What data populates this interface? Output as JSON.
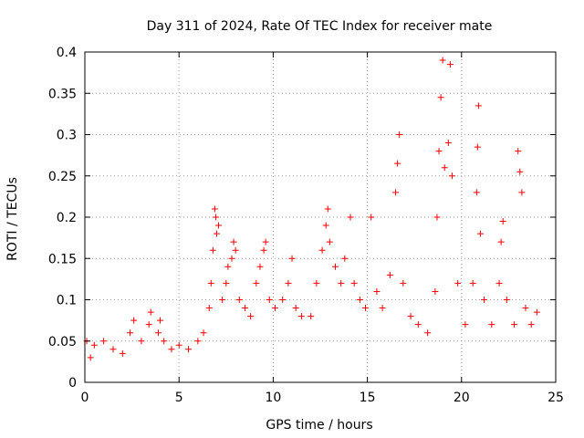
{
  "chart_data": {
    "type": "scatter",
    "title": "Day 311 of 2024, Rate Of TEC Index for receiver mate",
    "xlabel": "GPS time / hours",
    "ylabel": "ROTI / TECUs",
    "xlim": [
      0,
      25
    ],
    "ylim": [
      0,
      0.4
    ],
    "xticks": [
      0,
      5,
      10,
      15,
      20,
      25
    ],
    "yticks": [
      0,
      0.05,
      0.1,
      0.15,
      0.2,
      0.25,
      0.3,
      0.35,
      0.4
    ],
    "xtick_labels": [
      "0",
      "5",
      "10",
      "15",
      "20",
      "25"
    ],
    "ytick_labels": [
      "0",
      "0.05",
      "0.1",
      "0.15",
      "0.2",
      "0.25",
      "0.3",
      "0.35",
      "0.4"
    ],
    "grid": true,
    "marker": "+",
    "color": "#ff0000",
    "series": [
      {
        "name": "ROTI",
        "points": [
          [
            0.1,
            0.05
          ],
          [
            0.3,
            0.03
          ],
          [
            0.5,
            0.045
          ],
          [
            1.0,
            0.05
          ],
          [
            1.5,
            0.04
          ],
          [
            2.0,
            0.035
          ],
          [
            2.4,
            0.06
          ],
          [
            2.6,
            0.075
          ],
          [
            3.0,
            0.05
          ],
          [
            3.4,
            0.07
          ],
          [
            3.5,
            0.085
          ],
          [
            3.9,
            0.06
          ],
          [
            4.0,
            0.075
          ],
          [
            4.2,
            0.05
          ],
          [
            4.6,
            0.04
          ],
          [
            5.0,
            0.045
          ],
          [
            5.5,
            0.04
          ],
          [
            6.0,
            0.05
          ],
          [
            6.3,
            0.06
          ],
          [
            6.6,
            0.09
          ],
          [
            6.7,
            0.12
          ],
          [
            6.8,
            0.16
          ],
          [
            6.9,
            0.21
          ],
          [
            6.95,
            0.2
          ],
          [
            7.0,
            0.18
          ],
          [
            7.1,
            0.19
          ],
          [
            7.3,
            0.1
          ],
          [
            7.5,
            0.12
          ],
          [
            7.6,
            0.14
          ],
          [
            7.8,
            0.15
          ],
          [
            7.9,
            0.17
          ],
          [
            8.0,
            0.16
          ],
          [
            8.2,
            0.1
          ],
          [
            8.5,
            0.09
          ],
          [
            8.8,
            0.08
          ],
          [
            9.1,
            0.12
          ],
          [
            9.3,
            0.14
          ],
          [
            9.5,
            0.16
          ],
          [
            9.6,
            0.17
          ],
          [
            9.8,
            0.1
          ],
          [
            10.1,
            0.09
          ],
          [
            10.5,
            0.1
          ],
          [
            10.8,
            0.12
          ],
          [
            11.0,
            0.15
          ],
          [
            11.2,
            0.09
          ],
          [
            11.5,
            0.08
          ],
          [
            12.0,
            0.08
          ],
          [
            12.3,
            0.12
          ],
          [
            12.6,
            0.16
          ],
          [
            12.8,
            0.19
          ],
          [
            12.9,
            0.21
          ],
          [
            13.0,
            0.17
          ],
          [
            13.3,
            0.14
          ],
          [
            13.6,
            0.12
          ],
          [
            13.8,
            0.15
          ],
          [
            14.1,
            0.2
          ],
          [
            14.3,
            0.12
          ],
          [
            14.6,
            0.1
          ],
          [
            14.9,
            0.09
          ],
          [
            15.2,
            0.2
          ],
          [
            15.5,
            0.11
          ],
          [
            15.8,
            0.09
          ],
          [
            16.2,
            0.13
          ],
          [
            16.5,
            0.23
          ],
          [
            16.6,
            0.265
          ],
          [
            16.7,
            0.3
          ],
          [
            16.9,
            0.12
          ],
          [
            17.3,
            0.08
          ],
          [
            17.7,
            0.07
          ],
          [
            18.2,
            0.06
          ],
          [
            18.6,
            0.11
          ],
          [
            18.7,
            0.2
          ],
          [
            18.8,
            0.28
          ],
          [
            18.9,
            0.345
          ],
          [
            19.0,
            0.39
          ],
          [
            19.1,
            0.26
          ],
          [
            19.3,
            0.29
          ],
          [
            19.4,
            0.385
          ],
          [
            19.5,
            0.25
          ],
          [
            19.8,
            0.12
          ],
          [
            20.2,
            0.07
          ],
          [
            20.6,
            0.12
          ],
          [
            20.8,
            0.23
          ],
          [
            20.85,
            0.285
          ],
          [
            20.9,
            0.335
          ],
          [
            21.0,
            0.18
          ],
          [
            21.2,
            0.1
          ],
          [
            21.6,
            0.07
          ],
          [
            22.0,
            0.12
          ],
          [
            22.1,
            0.17
          ],
          [
            22.2,
            0.195
          ],
          [
            22.4,
            0.1
          ],
          [
            22.8,
            0.07
          ],
          [
            23.0,
            0.28
          ],
          [
            23.1,
            0.255
          ],
          [
            23.2,
            0.23
          ],
          [
            23.4,
            0.09
          ],
          [
            23.7,
            0.07
          ],
          [
            24.0,
            0.085
          ]
        ]
      }
    ]
  }
}
